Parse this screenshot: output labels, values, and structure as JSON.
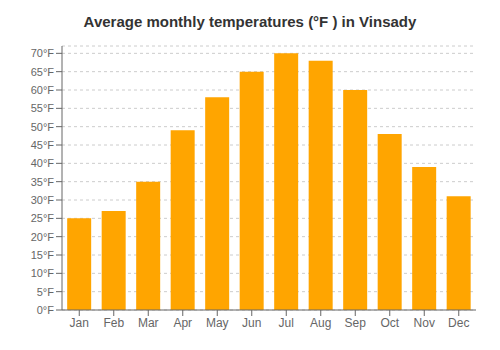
{
  "chart_data": {
    "type": "bar",
    "title": "Average monthly temperatures (°F ) in Vinsady",
    "categories": [
      "Jan",
      "Feb",
      "Mar",
      "Apr",
      "May",
      "Jun",
      "Jul",
      "Aug",
      "Sep",
      "Oct",
      "Nov",
      "Dec"
    ],
    "values": [
      25,
      27,
      35,
      49,
      58,
      65,
      70,
      68,
      60,
      48,
      39,
      31
    ],
    "color": "#FFA500",
    "ylim": [
      0,
      72
    ],
    "yticks": [
      {
        "value": 0,
        "label": "0°F"
      },
      {
        "value": 5,
        "label": "5°F"
      },
      {
        "value": 10,
        "label": "10°F"
      },
      {
        "value": 15,
        "label": "15°F"
      },
      {
        "value": 20,
        "label": "20°F"
      },
      {
        "value": 25,
        "label": "25°F"
      },
      {
        "value": 30,
        "label": "30°F"
      },
      {
        "value": 35,
        "label": "35°F"
      },
      {
        "value": 40,
        "label": "40°F"
      },
      {
        "value": 45,
        "label": "45°F"
      },
      {
        "value": 50,
        "label": "50°F"
      },
      {
        "value": 55,
        "label": "55°F"
      },
      {
        "value": 60,
        "label": "60°F"
      },
      {
        "value": 65,
        "label": "65°F"
      },
      {
        "value": 70,
        "label": "70°F"
      }
    ],
    "grid": true
  }
}
